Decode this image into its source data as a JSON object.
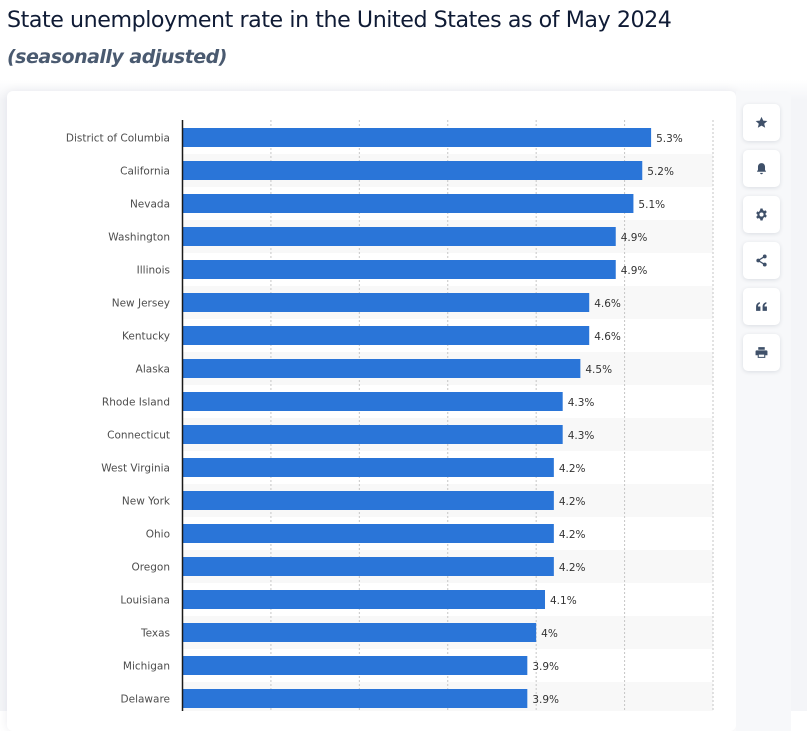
{
  "header": {
    "title": "State unemployment rate in the United States as of May 2024",
    "subtitle": "(seasonally adjusted)"
  },
  "toolbar": {
    "buttons": [
      {
        "icon": "star-icon",
        "label": "Favorite"
      },
      {
        "icon": "bell-icon",
        "label": "Notifications"
      },
      {
        "icon": "gear-icon",
        "label": "Settings"
      },
      {
        "icon": "share-icon",
        "label": "Share"
      },
      {
        "icon": "quote-icon",
        "label": "Cite"
      },
      {
        "icon": "print-icon",
        "label": "Print"
      }
    ],
    "icon_color": "#3f5069"
  },
  "chart_data": {
    "type": "bar",
    "orientation": "horizontal",
    "title": "State unemployment rate in the United States as of May 2024",
    "subtitle": "(seasonally adjusted)",
    "xlabel": "",
    "ylabel": "",
    "unit": "%",
    "xlim": [
      0,
      6
    ],
    "grid": true,
    "gridlines_at": [
      1,
      2,
      3,
      4,
      5,
      6
    ],
    "bar_color": "#2a75d8",
    "categories": [
      "District of Columbia",
      "California",
      "Nevada",
      "Washington",
      "Illinois",
      "New Jersey",
      "Kentucky",
      "Alaska",
      "Rhode Island",
      "Connecticut",
      "West Virginia",
      "New York",
      "Ohio",
      "Oregon",
      "Louisiana",
      "Texas",
      "Michigan",
      "Delaware"
    ],
    "values": [
      5.3,
      5.2,
      5.1,
      4.9,
      4.9,
      4.6,
      4.6,
      4.5,
      4.3,
      4.3,
      4.2,
      4.2,
      4.2,
      4.2,
      4.1,
      4.0,
      3.9,
      3.9
    ],
    "data_labels": [
      "5.3%",
      "5.2%",
      "5.1%",
      "4.9%",
      "4.9%",
      "4.6%",
      "4.6%",
      "4.5%",
      "4.3%",
      "4.3%",
      "4.2%",
      "4.2%",
      "4.2%",
      "4.2%",
      "4.1%",
      "4%",
      "3.9%",
      "3.9%"
    ]
  }
}
